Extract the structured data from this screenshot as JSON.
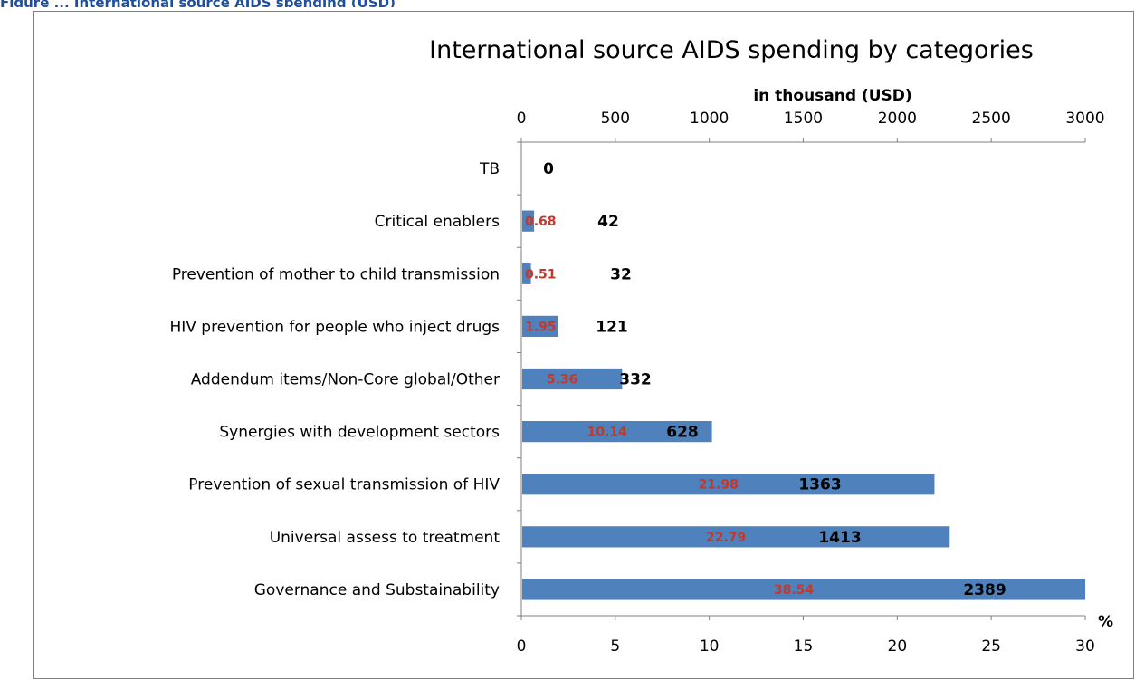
{
  "caption": "Figure ... International source AIDS spending (USD)",
  "chart_data": {
    "type": "bar",
    "orientation": "horizontal",
    "title": "International source AIDS spending by categories",
    "top_axis": {
      "label": "in thousand (USD)",
      "range": [
        0,
        3000
      ],
      "ticks": [
        "0",
        "500",
        "1000",
        "1500",
        "2000",
        "2500",
        "3000"
      ]
    },
    "bottom_axis": {
      "label": "%",
      "range": [
        0,
        30
      ],
      "ticks": [
        "0",
        "5",
        "10",
        "15",
        "20",
        "25",
        "30"
      ]
    },
    "categories": [
      "TB",
      "Critical enablers",
      "Prevention of mother to child transmission",
      "HIV prevention for people who inject drugs",
      "Addendum items/Non-Core global/Other",
      "Synergies with development sectors",
      "Prevention of sexual transmission of HIV",
      "Universal assess to treatment",
      "Governance and Substainability"
    ],
    "series": [
      {
        "values": [
          0,
          0.68,
          0.51,
          1.95,
          5.36,
          10.14,
          21.98,
          22.79,
          38.54
        ],
        "labels": [
          "",
          "0.68",
          "0.51",
          "1.95",
          "5.36",
          "10.14",
          "21.98",
          "22.79",
          "38.54"
        ]
      },
      {
        "values": [
          0,
          42,
          32,
          121,
          332,
          628,
          1363,
          1413,
          2389
        ],
        "labels": [
          "0",
          "42",
          "32",
          "121",
          "332",
          "628",
          "1363",
          "1413",
          "2389"
        ]
      }
    ],
    "colors": {
      "bar": "#4f81bd",
      "pct_label": "#c0392b",
      "value_label": "#000000"
    },
    "grid": false,
    "legend": "none"
  }
}
